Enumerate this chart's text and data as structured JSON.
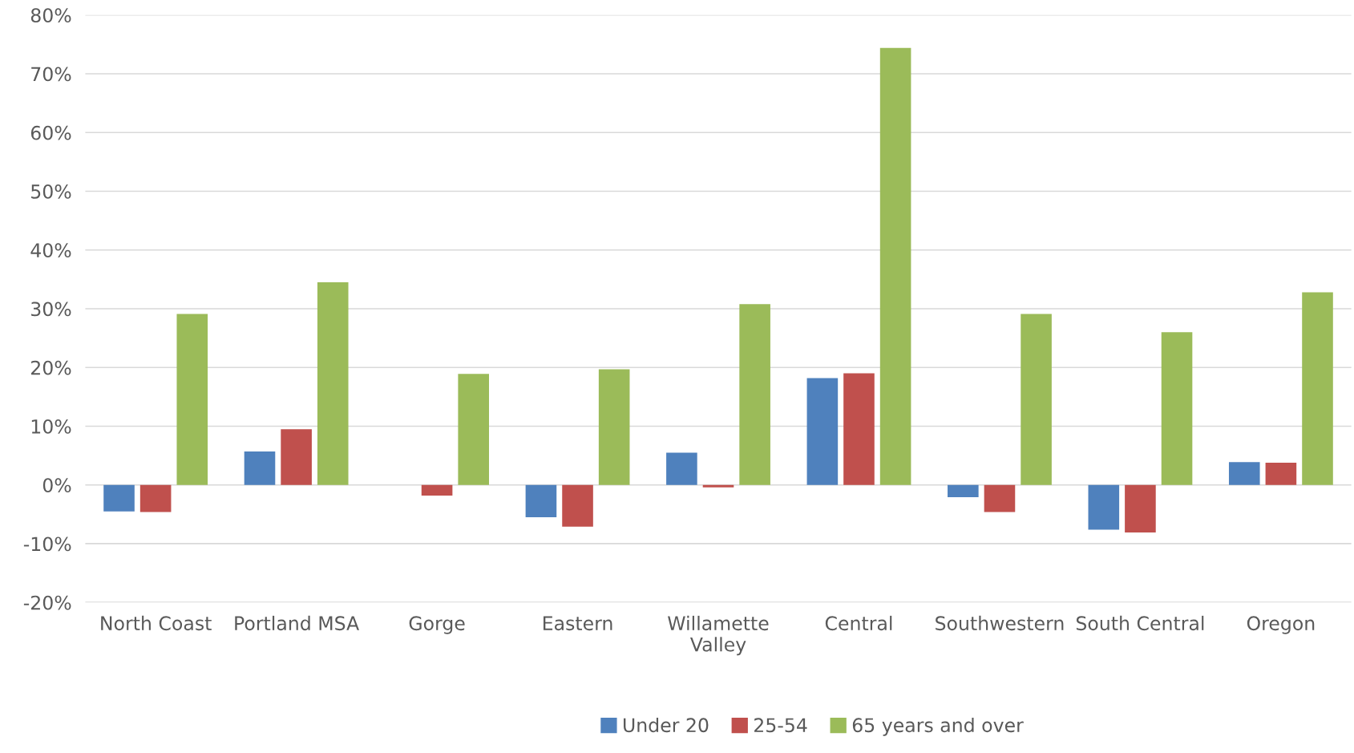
{
  "chart_data": {
    "type": "bar",
    "categories": [
      "North Coast",
      "Portland MSA",
      "Gorge",
      "Eastern",
      "Willamette\nValley",
      "Central",
      "Southwestern",
      "South Central",
      "Oregon"
    ],
    "series": [
      {
        "name": "Under 20",
        "color": "#4f81bd",
        "values": [
          -4.5,
          5.7,
          null,
          -5.5,
          5.5,
          18.2,
          -2.1,
          -7.6,
          3.9
        ]
      },
      {
        "name": "25-54",
        "color": "#c0504d",
        "values": [
          -4.6,
          9.5,
          -1.8,
          -7.1,
          -0.4,
          19.0,
          -4.6,
          -8.1,
          3.8
        ]
      },
      {
        "name": "65 years and over",
        "color": "#9bbb59",
        "values": [
          29.1,
          34.5,
          18.9,
          19.7,
          30.8,
          74.4,
          29.1,
          26.0,
          32.8
        ]
      }
    ],
    "ylim": [
      -20,
      80
    ],
    "yticks": [
      {
        "value": -20,
        "label": "-20%"
      },
      {
        "value": -10,
        "label": "-10%"
      },
      {
        "value": 0,
        "label": "0%"
      },
      {
        "value": 10,
        "label": "10%"
      },
      {
        "value": 20,
        "label": "20%"
      },
      {
        "value": 30,
        "label": "30%"
      },
      {
        "value": 40,
        "label": "40%"
      },
      {
        "value": 50,
        "label": "50%"
      },
      {
        "value": 60,
        "label": "60%"
      },
      {
        "value": 70,
        "label": "70%"
      },
      {
        "value": 80,
        "label": "80%"
      }
    ],
    "grid": "y",
    "legend": "bottom"
  }
}
